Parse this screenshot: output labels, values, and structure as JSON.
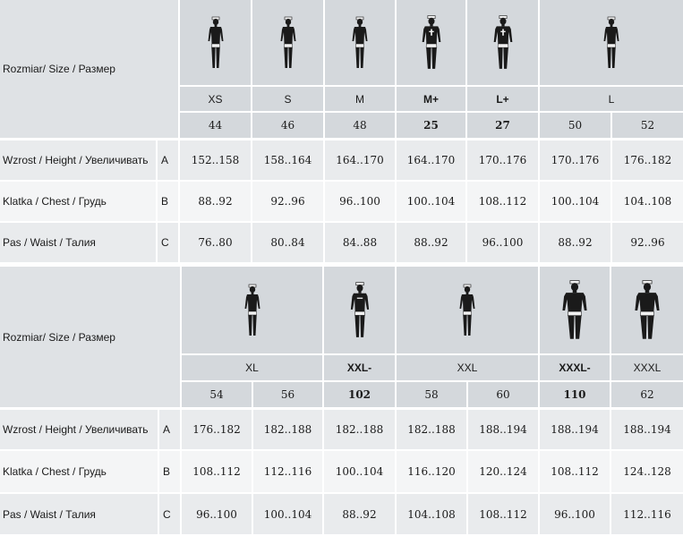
{
  "tables": [
    {
      "header_label": "Rozmiar/ Size / Размер",
      "figures": [
        {
          "name": "figure-xs",
          "style": "slim"
        },
        {
          "name": "figure-s",
          "style": "slim"
        },
        {
          "name": "figure-m",
          "style": "slim"
        },
        {
          "name": "figure-mplus",
          "style": "cross"
        },
        {
          "name": "figure-lplus",
          "style": "cross"
        },
        {
          "name": "figure-l",
          "style": "slim"
        }
      ],
      "sizes": [
        "XS",
        "S",
        "M",
        "M+",
        "L+",
        "L"
      ],
      "numbers": [
        "44",
        "46",
        "48",
        "25",
        "27",
        "50",
        "52"
      ],
      "rows": [
        {
          "label": "Wzrost / Height / Увеличивать",
          "letter": "A",
          "values": [
            "152..158",
            "158..164",
            "164..170",
            "164..170",
            "170..176",
            "170..176",
            "176..182"
          ]
        },
        {
          "label": "Klatka / Chest / Грудь",
          "letter": "B",
          "values": [
            "88..92",
            "92..96",
            "96..100",
            "100..104",
            "108..112",
            "100..104",
            "104..108"
          ]
        },
        {
          "label": "Pas / Waist / Талия",
          "letter": "C",
          "values": [
            "76..80",
            "80..84",
            "84..88",
            "88..92",
            "96..100",
            "88..92",
            "92..96"
          ]
        }
      ]
    },
    {
      "header_label": "Rozmiar/ Size / Размер",
      "figures": [
        {
          "name": "figure-xl",
          "style": "slim"
        },
        {
          "name": "figure-xxlminus",
          "style": "line"
        },
        {
          "name": "figure-xxl",
          "style": "slim"
        },
        {
          "name": "figure-xxxlminus",
          "style": "muscular"
        },
        {
          "name": "figure-xxxl",
          "style": "muscular"
        }
      ],
      "sizes": [
        "XL",
        "XXL-",
        "XXL",
        "XXXL-",
        "XXXL"
      ],
      "numbers": [
        "54",
        "56",
        "102",
        "58",
        "60",
        "110",
        "62"
      ],
      "rows": [
        {
          "label": "Wzrost / Height / Увеличивать",
          "letter": "A",
          "values": [
            "176..182",
            "182..188",
            "182..188",
            "182..188",
            "188..194",
            "188..194",
            "188..194"
          ]
        },
        {
          "label": "Klatka / Chest / Грудь",
          "letter": "B",
          "values": [
            "108..112",
            "112..116",
            "100..104",
            "116..120",
            "120..124",
            "108..112",
            "124..128"
          ]
        },
        {
          "label": "Pas / Waist / Талия",
          "letter": "C",
          "values": [
            "96..100",
            "100..104",
            "88..92",
            "104..108",
            "108..112",
            "96..100",
            "112..116"
          ]
        }
      ]
    }
  ],
  "colors": {
    "header_bg": "#d4d8dc",
    "row_bg": "#e9ebed",
    "row_alt_bg": "#f4f5f6",
    "figure": "#1a1a1a"
  }
}
